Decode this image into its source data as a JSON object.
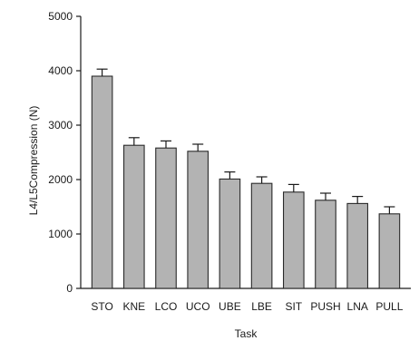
{
  "chart_data": {
    "type": "bar",
    "title": "",
    "xlabel": "Task",
    "ylabel": "L4/L5Compression (N)",
    "categories": [
      "STO",
      "KNE",
      "LCO",
      "UCO",
      "UBE",
      "LBE",
      "SIT",
      "PUSH",
      "LNA",
      "PULL"
    ],
    "values": [
      3900,
      2630,
      2580,
      2520,
      2010,
      1930,
      1770,
      1620,
      1560,
      1370
    ],
    "error": [
      130,
      140,
      130,
      130,
      130,
      120,
      140,
      130,
      130,
      130
    ],
    "ylim": [
      0,
      5000
    ],
    "yticks": [
      "0",
      "1000",
      "2000",
      "3000",
      "4000",
      "5000"
    ],
    "grid": false,
    "bar_color": "#b3b3b3",
    "edge_color": "#2a2a2a"
  }
}
